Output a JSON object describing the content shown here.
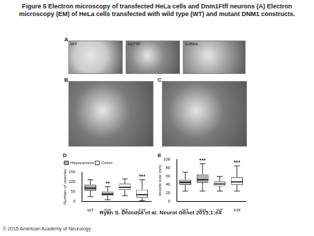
{
  "header": {
    "title": "Figure 5 Electron microscopy of transfected HeLa cells and Dnm1Ftfl neurons (A) Electron microscopy (EM) of HeLa cells transfected with wild type (WT) and mutant DNM1 constructs."
  },
  "panels": [
    {
      "label": "A",
      "images": [
        "WT",
        "A177P",
        "G359A"
      ]
    },
    {
      "label": "B",
      "images": [
        ""
      ]
    },
    {
      "label": "C",
      "images": [
        ""
      ]
    }
  ],
  "chart_data": [
    {
      "type": "box",
      "label": "D",
      "y_label": "Number of vesicles",
      "categories": [
        "WT",
        "Fl/fl",
        "WT",
        "Fl/fl"
      ],
      "series": [
        {
          "name": "Hippocampus",
          "color": "#b3b3b3",
          "min": [
            25,
            10,
            null,
            null
          ],
          "q1": [
            55,
            30,
            null,
            null
          ],
          "median": [
            68,
            38,
            null,
            null
          ],
          "q3": [
            85,
            50,
            null,
            null
          ],
          "max": [
            110,
            75,
            null,
            null
          ]
        },
        {
          "name": "Cortex",
          "color": "#ffffff",
          "min": [
            null,
            null,
            30,
            5
          ],
          "q1": [
            null,
            null,
            60,
            20
          ],
          "median": [
            null,
            null,
            72,
            35
          ],
          "q3": [
            null,
            null,
            90,
            60
          ],
          "max": [
            null,
            null,
            115,
            110
          ]
        }
      ],
      "annotations": [
        null,
        "**",
        null,
        "***"
      ],
      "ylim": [
        0,
        150
      ],
      "yticks": [
        0,
        50,
        100,
        150
      ],
      "grid": false,
      "legend": "top-left"
    },
    {
      "type": "box",
      "label": "E",
      "y_label": "Vesicle size (nm)",
      "categories": [
        "WT",
        "Fl/fl",
        "WT",
        "Fl/fl"
      ],
      "series": [
        {
          "color": "#b3b3b3",
          "min": [
            25,
            25,
            null,
            null
          ],
          "q1": [
            40,
            45,
            null,
            null
          ],
          "median": [
            46,
            52,
            null,
            null
          ],
          "q3": [
            52,
            65,
            null,
            null
          ],
          "max": [
            70,
            90,
            null,
            null
          ]
        },
        {
          "color": "#ffffff",
          "min": [
            null,
            null,
            25,
            25
          ],
          "q1": [
            null,
            null,
            37,
            40
          ],
          "median": [
            null,
            null,
            42,
            47
          ],
          "q3": [
            null,
            null,
            48,
            58
          ],
          "max": [
            null,
            null,
            60,
            85
          ]
        }
      ],
      "annotations": [
        null,
        "***",
        null,
        "***"
      ],
      "ylim": [
        0,
        100
      ],
      "yticks": [
        0,
        20,
        40,
        60,
        80,
        100
      ],
      "grid": false
    }
  ],
  "caption": "Ryan S. Dhindsa et al. Neurol Genet 2015;1:e4",
  "copyright": "© 2015 American Academy of Neurology"
}
